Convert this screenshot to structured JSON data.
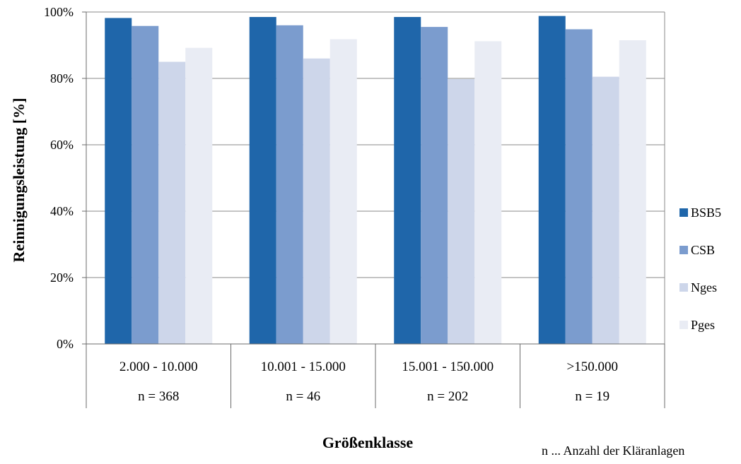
{
  "chart_data": {
    "type": "bar",
    "title": "",
    "xlabel": "Größenklasse",
    "ylabel": "Reinnigungsleistung  [%]",
    "ylim": [
      0,
      100
    ],
    "yticks": [
      "0%",
      "20%",
      "40%",
      "60%",
      "80%",
      "100%"
    ],
    "grid": true,
    "legend_position": "right",
    "categories": [
      "2.000 - 10.000",
      "10.001 - 15.000",
      "15.001 - 150.000",
      ">150.000"
    ],
    "sample_sizes": [
      "n = 368",
      "n = 46",
      "n = 202",
      "n = 19"
    ],
    "series": [
      {
        "name": "BSB5",
        "color": "#1f66aa",
        "values": [
          98.2,
          98.5,
          98.5,
          98.8
        ]
      },
      {
        "name": "CSB",
        "color": "#7b9cce",
        "values": [
          95.8,
          96.0,
          95.5,
          94.8
        ]
      },
      {
        "name": "Nges",
        "color": "#cdd6ea",
        "values": [
          85.0,
          86.0,
          79.8,
          80.5
        ]
      },
      {
        "name": "Pges",
        "color": "#e9ecf4",
        "values": [
          89.2,
          91.8,
          91.2,
          91.5
        ]
      }
    ],
    "footnote": "n ... Anzahl der Kläranlagen"
  }
}
